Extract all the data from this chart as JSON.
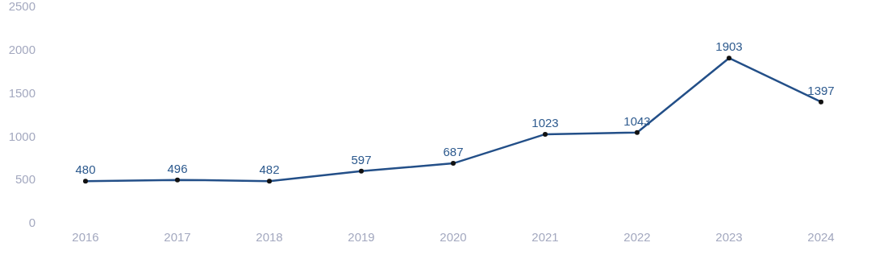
{
  "chart_data": {
    "type": "line",
    "categories": [
      "2016",
      "2017",
      "2018",
      "2019",
      "2020",
      "2021",
      "2022",
      "2023",
      "2024"
    ],
    "series": [
      {
        "color": "#234f88",
        "values": [
          480,
          496,
          482,
          597,
          687,
          1023,
          1043,
          1903,
          1397
        ]
      }
    ],
    "ylim": [
      0,
      2500
    ],
    "yticks": [
      0,
      500,
      1000,
      1500,
      2000,
      2500
    ],
    "grid": false,
    "marker": "circle",
    "line_style": "solid",
    "data_labels": true
  }
}
